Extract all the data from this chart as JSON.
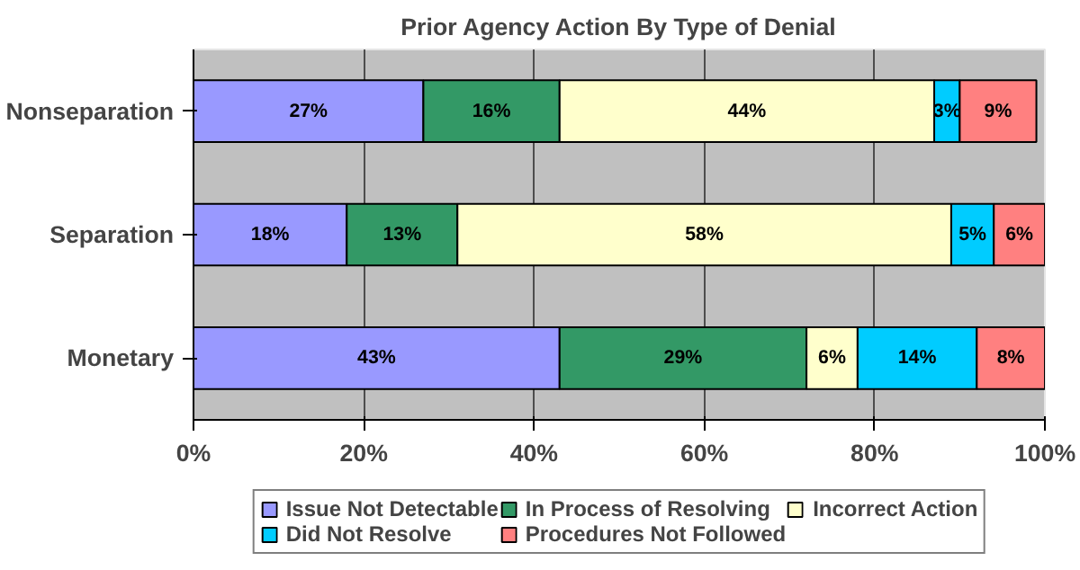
{
  "chart_data": {
    "type": "bar",
    "orientation": "horizontal",
    "stacked": true,
    "title": "Prior Agency Action By Type of Denial",
    "categories": [
      "Nonseparation",
      "Separation",
      "Monetary"
    ],
    "series": [
      {
        "name": "Issue Not Detectable",
        "color": "#9999ff",
        "values": [
          27,
          18,
          43
        ],
        "value_labels": [
          "27%",
          "18%",
          "43%"
        ]
      },
      {
        "name": "In Process of Resolving",
        "color": "#339966",
        "values": [
          16,
          13,
          29
        ],
        "value_labels": [
          "16%",
          "13%",
          "29%"
        ]
      },
      {
        "name": "Incorrect Action",
        "color": "#ffffcc",
        "values": [
          44,
          58,
          6
        ],
        "value_labels": [
          "44%",
          "58%",
          "6%"
        ]
      },
      {
        "name": "Did Not Resolve",
        "color": "#00ccff",
        "values": [
          3,
          5,
          14
        ],
        "value_labels": [
          "3%",
          "5%",
          "14%"
        ]
      },
      {
        "name": "Procedures Not Followed",
        "color": "#ff8080",
        "values": [
          9,
          6,
          8
        ],
        "value_labels": [
          "9%",
          "6%",
          "8%"
        ]
      }
    ],
    "xlim": [
      0,
      100
    ],
    "xticks": [
      {
        "value": 0,
        "label": "0%"
      },
      {
        "value": 20,
        "label": "20%"
      },
      {
        "value": 40,
        "label": "40%"
      },
      {
        "value": 60,
        "label": "60%"
      },
      {
        "value": 80,
        "label": "80%"
      },
      {
        "value": 100,
        "label": "100%"
      }
    ],
    "grid": "x",
    "legend": "bottom"
  }
}
